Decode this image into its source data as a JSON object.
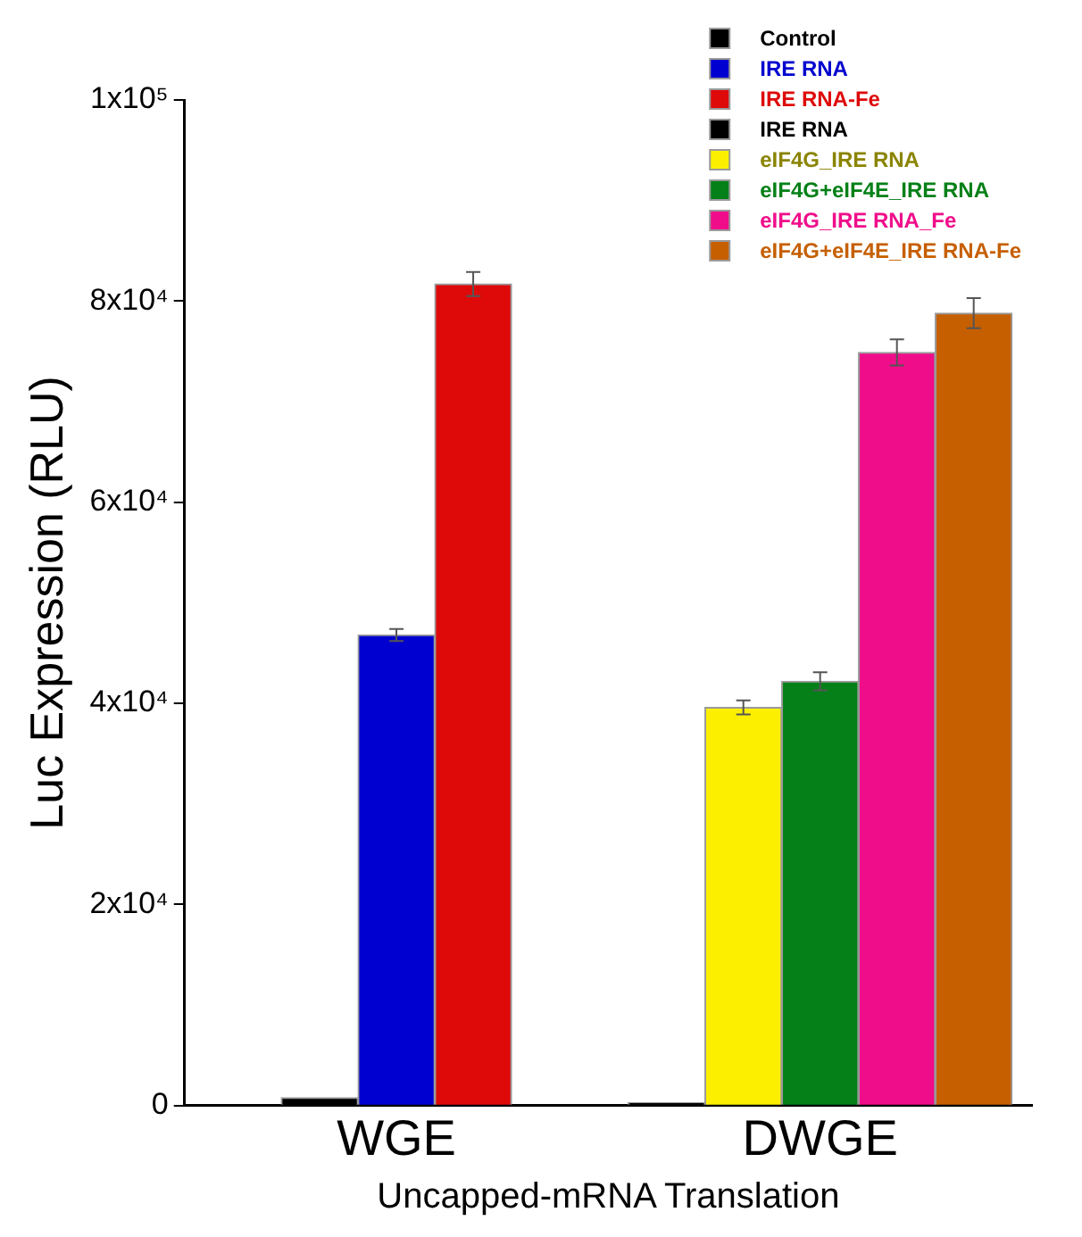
{
  "chart_data": {
    "type": "bar",
    "xlabel": "Uncapped-mRNA Translation",
    "ylabel": "Luc Expression (RLU)",
    "categories": [
      "WGE",
      "DWGE"
    ],
    "series": [
      {
        "name": "Control",
        "color": "#000000",
        "values": [
          800,
          null
        ]
      },
      {
        "name": "IRE RNA",
        "color": "#0000d0",
        "values": [
          46800,
          null
        ],
        "errors": [
          600,
          null
        ]
      },
      {
        "name": "IRE RNA-Fe",
        "color": "#de0a0a",
        "values": [
          81700,
          null
        ],
        "errors": [
          1200,
          null
        ]
      },
      {
        "name": "IRE RNA",
        "color": "#000000",
        "values": [
          null,
          300
        ]
      },
      {
        "name": "eIF4G_IRE RNA",
        "color": "#fcf000",
        "values": [
          null,
          39600
        ],
        "errors": [
          null,
          700
        ]
      },
      {
        "name": "eIF4G+eIF4E_IRE RNA",
        "color": "#058018",
        "values": [
          null,
          42200
        ],
        "errors": [
          null,
          900
        ]
      },
      {
        "name": "eIF4G_IRE RNA_Fe",
        "color": "#f00d8a",
        "values": [
          null,
          74900
        ],
        "errors": [
          null,
          1300
        ]
      },
      {
        "name": "eIF4G+eIF4E_IRE RNA-Fe",
        "color": "#c65f00",
        "values": [
          null,
          78800
        ],
        "errors": [
          null,
          1500
        ]
      }
    ],
    "ylim": [
      0,
      100000
    ],
    "yticks": [
      0,
      {
        "value": 20000,
        "label": "2x10⁴"
      },
      {
        "value": 40000,
        "label": "4x10⁴"
      },
      {
        "value": 60000,
        "label": "6x10⁴"
      },
      {
        "value": 80000,
        "label": "8x10⁴"
      },
      {
        "value": 100000,
        "label": "1x10⁵"
      }
    ],
    "grid": false,
    "legend": "top right"
  }
}
